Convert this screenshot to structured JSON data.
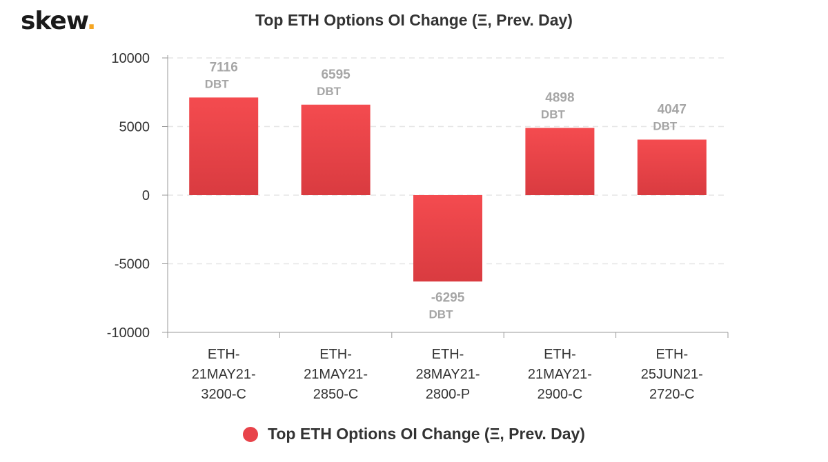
{
  "brand": {
    "name": "skew",
    "dot": "."
  },
  "chart_data": {
    "type": "bar",
    "title": "Top ETH Options OI Change (Ξ, Prev. Day)",
    "categories": [
      [
        "ETH-",
        "21MAY21-",
        "3200-C"
      ],
      [
        "ETH-",
        "21MAY21-",
        "2850-C"
      ],
      [
        "ETH-",
        "28MAY21-",
        "2800-P"
      ],
      [
        "ETH-",
        "21MAY21-",
        "2900-C"
      ],
      [
        "ETH-",
        "25JUN21-",
        "2720-C"
      ]
    ],
    "series": [
      {
        "name": "Top ETH Options OI Change (Ξ, Prev. Day)",
        "values": [
          7116,
          6595,
          -6295,
          4898,
          4047
        ]
      }
    ],
    "data_label_suffix": "DBT",
    "yticks": [
      10000,
      5000,
      0,
      -5000,
      -10000
    ],
    "ylim": [
      -10000,
      10000
    ],
    "grid": true,
    "legend_position": "bottom-center",
    "colors": {
      "bar_top": "#f44b4f",
      "bar_bottom": "#d93b40",
      "grid": "#e6e6e6",
      "axis": "#999999",
      "label": "#a6a6a6"
    }
  }
}
